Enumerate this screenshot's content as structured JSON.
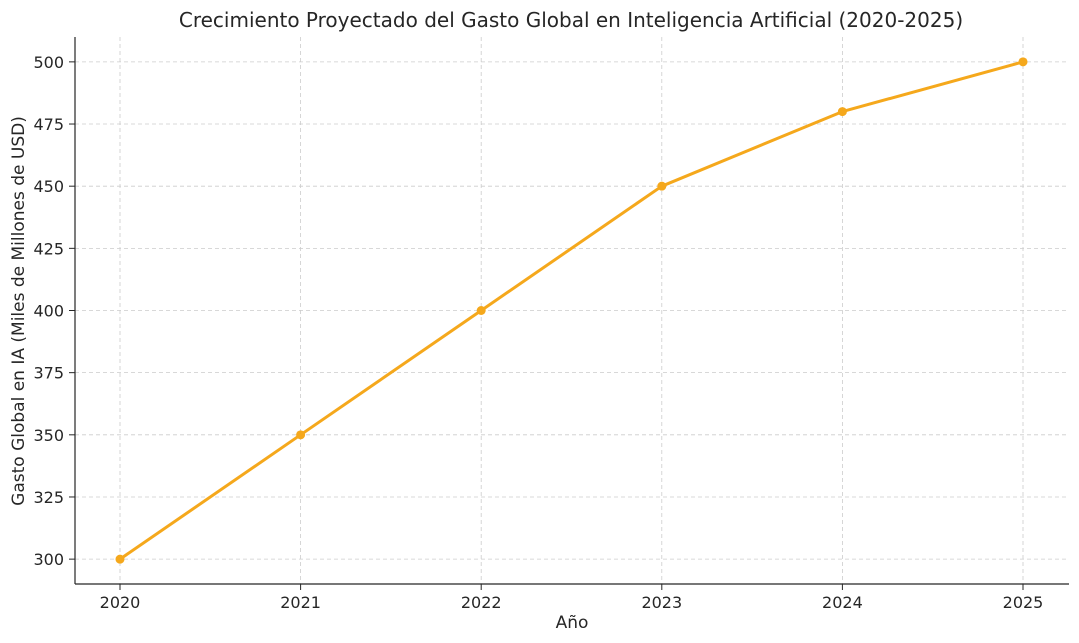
{
  "chart_data": {
    "type": "line",
    "title": "Crecimiento Proyectado del Gasto Global en Inteligencia Artificial (2020-2025)",
    "xlabel": "Año",
    "ylabel": "Gasto Global en IA (Miles de Millones de USD)",
    "categories": [
      "2020",
      "2021",
      "2022",
      "2023",
      "2024",
      "2025"
    ],
    "series": [
      {
        "values": [
          300,
          350,
          400,
          450,
          480,
          500
        ],
        "color": "#f5a81c"
      }
    ],
    "ylim": [
      290,
      510
    ],
    "yticks": [
      "300",
      "325",
      "350",
      "375",
      "400",
      "425",
      "450",
      "475",
      "500"
    ],
    "grid": true,
    "marker": "circle"
  }
}
